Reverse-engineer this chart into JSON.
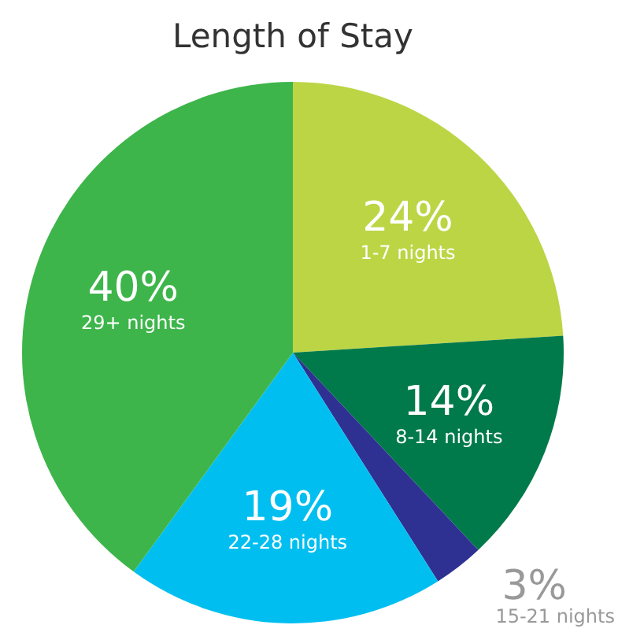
{
  "chart_data": {
    "type": "pie",
    "title": "Length of Stay",
    "categories": [
      "1-7 nights",
      "8-14 nights",
      "15-21 nights",
      "22-28 nights",
      "29+ nights"
    ],
    "values": [
      24,
      14,
      3,
      19,
      40
    ],
    "value_labels": [
      "24%",
      "14%",
      "3%",
      "19%",
      "40%"
    ],
    "colors": [
      "#bcd545",
      "#007a4a",
      "#2e3192",
      "#00bff0",
      "#3db54a"
    ]
  }
}
